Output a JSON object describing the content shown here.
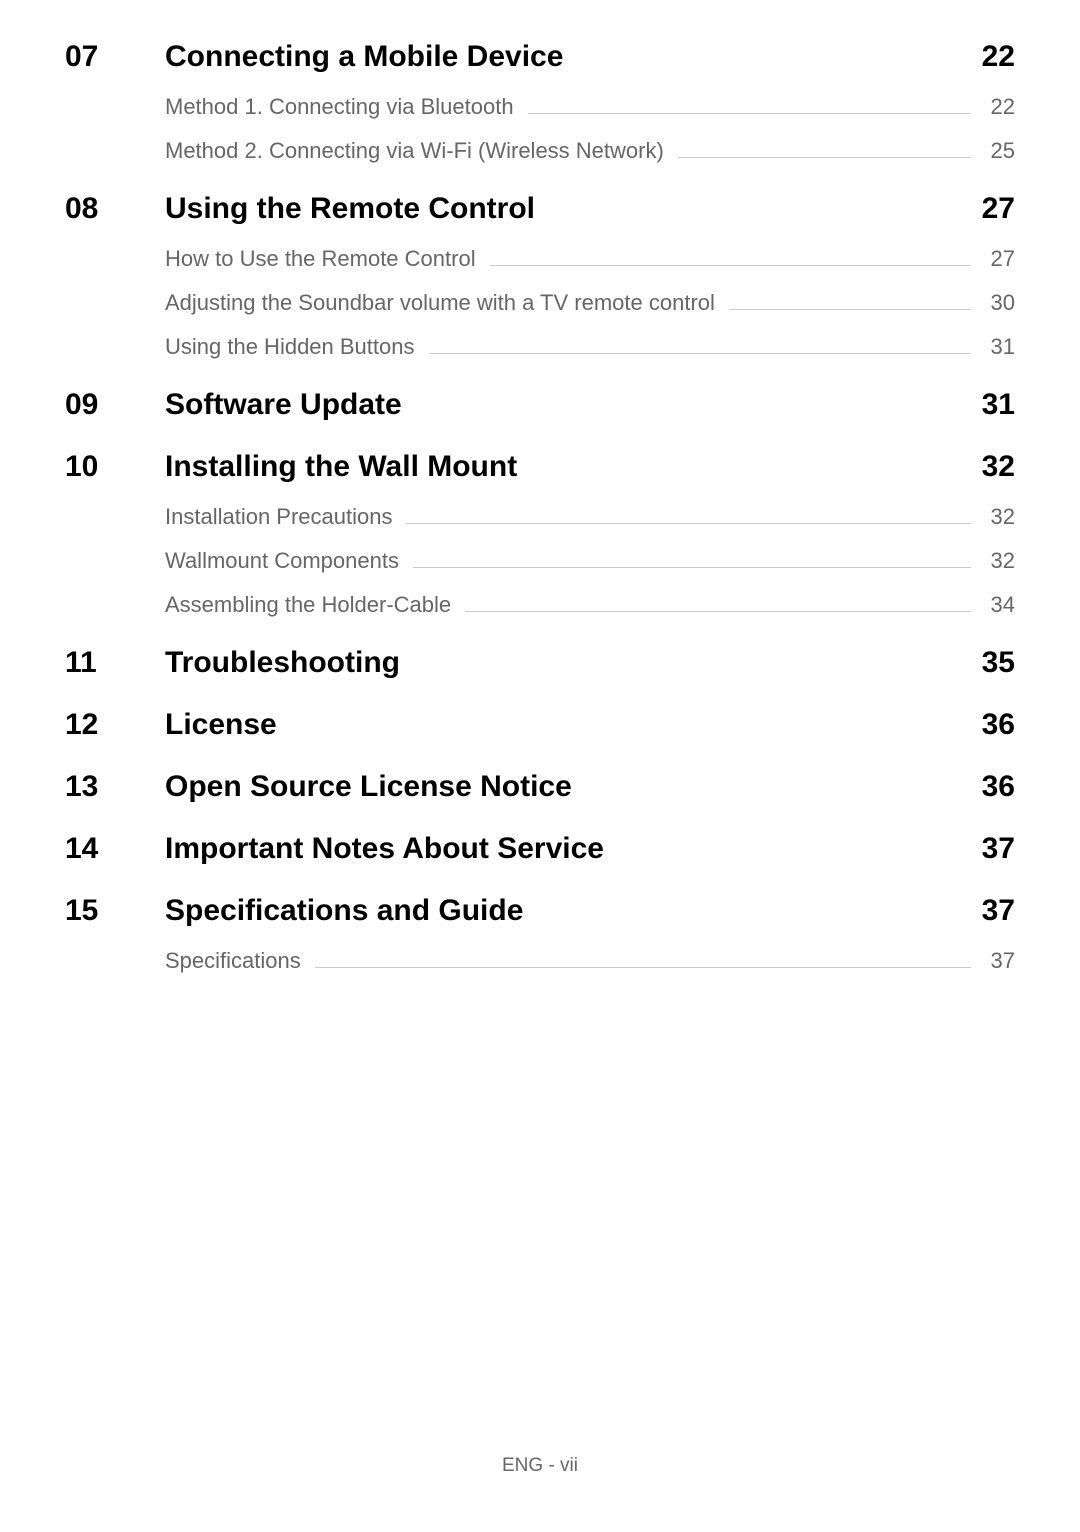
{
  "sections": [
    {
      "number": "07",
      "title": "Connecting a Mobile Device",
      "page": "22",
      "subsections": [
        {
          "title": "Method 1. Connecting via Bluetooth",
          "page": "22"
        },
        {
          "title": "Method 2. Connecting via Wi-Fi (Wireless Network)",
          "page": "25"
        }
      ]
    },
    {
      "number": "08",
      "title": "Using the Remote Control",
      "page": "27",
      "subsections": [
        {
          "title": "How to Use the Remote Control",
          "page": "27"
        },
        {
          "title": "Adjusting the Soundbar volume with a TV remote control",
          "page": "30"
        },
        {
          "title": "Using the Hidden Buttons",
          "page": "31"
        }
      ]
    },
    {
      "number": "09",
      "title": "Software Update",
      "page": "31",
      "subsections": []
    },
    {
      "number": "10",
      "title": "Installing the Wall Mount",
      "page": "32",
      "subsections": [
        {
          "title": "Installation Precautions",
          "page": "32"
        },
        {
          "title": "Wallmount Components",
          "page": "32"
        },
        {
          "title": "Assembling the Holder-Cable",
          "page": "34"
        }
      ]
    },
    {
      "number": "11",
      "title": "Troubleshooting",
      "page": "35",
      "subsections": []
    },
    {
      "number": "12",
      "title": "License",
      "page": "36",
      "subsections": []
    },
    {
      "number": "13",
      "title": "Open Source License Notice",
      "page": "36",
      "subsections": []
    },
    {
      "number": "14",
      "title": "Important Notes About Service",
      "page": "37",
      "subsections": []
    },
    {
      "number": "15",
      "title": "Specifications and Guide",
      "page": "37",
      "subsections": [
        {
          "title": "Specifications",
          "page": "37"
        }
      ]
    }
  ],
  "footer": "ENG - vii",
  "colors": {
    "background": "#ffffff",
    "heading_text": "#000000",
    "sub_text": "#666666",
    "leader_line": "#cccccc"
  },
  "typography": {
    "heading_fontsize": 30,
    "heading_weight": 700,
    "sub_fontsize": 22,
    "sub_weight": 400,
    "footer_fontsize": 19
  }
}
